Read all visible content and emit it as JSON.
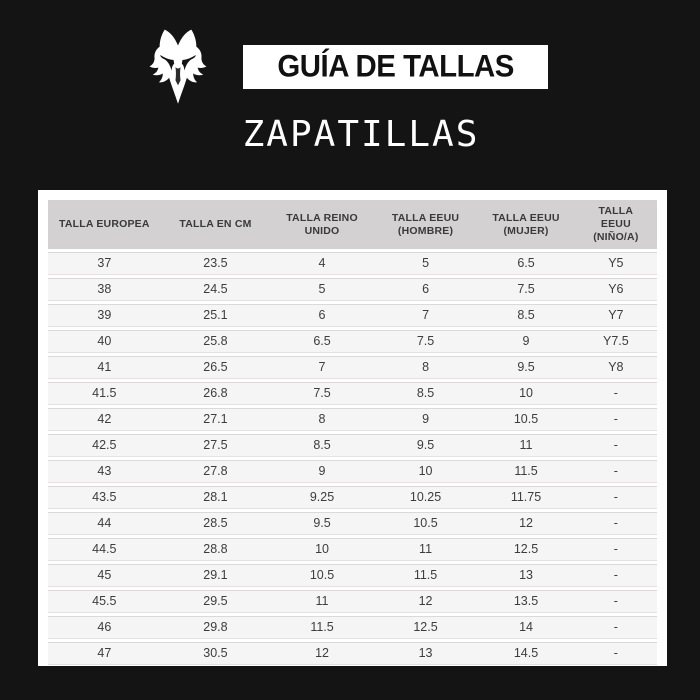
{
  "page": {
    "background_color": "#141414",
    "panel_color": "#ffffff"
  },
  "header": {
    "brand_icon": "fox-head-logo",
    "title": "GUÍA DE TALLAS",
    "subtitle": "ZAPATILLAS",
    "title_box_bg": "#ffffff",
    "title_text_color": "#111111",
    "subtitle_text_color": "#ffffff"
  },
  "size_table": {
    "header_bg": "#d3d1d1",
    "row_bg": "#f6f5f5",
    "row_line_color": "#dbd9d9",
    "text_color": "#3d3d3d",
    "columns": [
      "TALLA EUROPEA",
      "TALLA EN CM",
      "TALLA REINO UNIDO",
      "TALLA EEUU (HOMBRE)",
      "TALLA EEUU (MUJER)",
      "TALLA EEUU (NIÑO/A)"
    ],
    "rows": [
      [
        "37",
        "23.5",
        "4",
        "5",
        "6.5",
        "Y5"
      ],
      [
        "38",
        "24.5",
        "5",
        "6",
        "7.5",
        "Y6"
      ],
      [
        "39",
        "25.1",
        "6",
        "7",
        "8.5",
        "Y7"
      ],
      [
        "40",
        "25.8",
        "6.5",
        "7.5",
        "9",
        "Y7.5"
      ],
      [
        "41",
        "26.5",
        "7",
        "8",
        "9.5",
        "Y8"
      ],
      [
        "41.5",
        "26.8",
        "7.5",
        "8.5",
        "10",
        "-"
      ],
      [
        "42",
        "27.1",
        "8",
        "9",
        "10.5",
        "-"
      ],
      [
        "42.5",
        "27.5",
        "8.5",
        "9.5",
        "11",
        "-"
      ],
      [
        "43",
        "27.8",
        "9",
        "10",
        "11.5",
        "-"
      ],
      [
        "43.5",
        "28.1",
        "9.25",
        "10.25",
        "11.75",
        "-"
      ],
      [
        "44",
        "28.5",
        "9.5",
        "10.5",
        "12",
        "-"
      ],
      [
        "44.5",
        "28.8",
        "10",
        "11",
        "12.5",
        "-"
      ],
      [
        "45",
        "29.1",
        "10.5",
        "11.5",
        "13",
        "-"
      ],
      [
        "45.5",
        "29.5",
        "11",
        "12",
        "13.5",
        "-"
      ],
      [
        "46",
        "29.8",
        "11.5",
        "12.5",
        "14",
        "-"
      ],
      [
        "47",
        "30.5",
        "12",
        "13",
        "14.5",
        "-"
      ]
    ]
  }
}
